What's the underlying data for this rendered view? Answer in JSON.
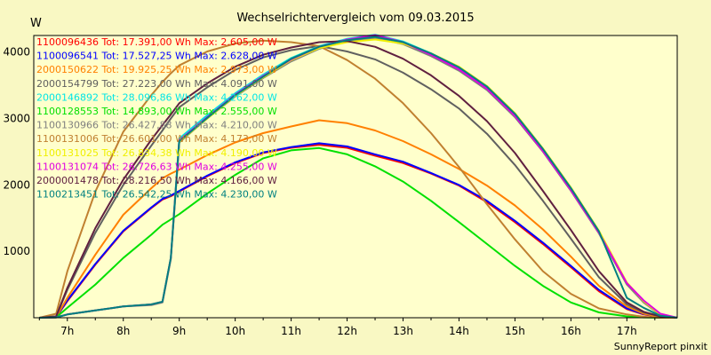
{
  "chart_data": {
    "type": "line",
    "title": "Wechselrichtervergleich vom 09.03.2015",
    "ylabel": "W",
    "xlabel": "",
    "footer": "SunnyReport pinxit",
    "xlim": [
      6.4,
      17.9
    ],
    "ylim": [
      0,
      4250
    ],
    "yticks": [
      1000,
      2000,
      3000,
      4000
    ],
    "xticks": [
      7,
      8,
      9,
      10,
      11,
      12,
      13,
      14,
      15,
      16,
      17
    ],
    "xtick_labels": [
      "7h",
      "8h",
      "9h",
      "10h",
      "11h",
      "12h",
      "13h",
      "14h",
      "15h",
      "16h",
      "17h"
    ],
    "x": [
      6.5,
      6.8,
      7,
      7.5,
      8,
      8.5,
      8.7,
      8.85,
      9,
      9.5,
      10,
      10.5,
      11,
      11.5,
      12,
      12.5,
      13,
      13.5,
      14,
      14.5,
      15,
      15.5,
      16,
      16.5,
      17,
      17.3,
      17.6,
      17.9
    ],
    "series": [
      {
        "name": "1100096436",
        "legend": "1100096436 Tot: 17.391,00 Wh Max: 2.605,00 W",
        "color": "#ff0000",
        "values": [
          0,
          10,
          250,
          800,
          1300,
          1650,
          1780,
          1830,
          1900,
          2130,
          2330,
          2480,
          2560,
          2605,
          2560,
          2440,
          2330,
          2170,
          1990,
          1740,
          1440,
          1110,
          760,
          400,
          130,
          50,
          10,
          0
        ]
      },
      {
        "name": "1100096541",
        "legend": "1100096541 Tot: 17.527,25 Wh Max: 2.628,00 W",
        "color": "#0000ff",
        "values": [
          0,
          10,
          260,
          810,
          1310,
          1660,
          1790,
          1840,
          1910,
          2140,
          2340,
          2490,
          2570,
          2628,
          2580,
          2460,
          2350,
          2180,
          2000,
          1760,
          1460,
          1130,
          780,
          420,
          140,
          55,
          10,
          0
        ]
      },
      {
        "name": "2000150622",
        "legend": "2000150622 Tot: 19.925,25 Wh Max: 2.973,00 W",
        "color": "#ff8000",
        "values": [
          0,
          10,
          300,
          950,
          1550,
          1950,
          2100,
          2170,
          2230,
          2450,
          2640,
          2780,
          2880,
          2973,
          2930,
          2820,
          2660,
          2460,
          2240,
          1990,
          1690,
          1330,
          920,
          480,
          170,
          60,
          10,
          0
        ]
      },
      {
        "name": "2000154799",
        "legend": "2000154799 Tot: 27.223,00 Wh Max: 4.091,00 W",
        "color": "#606060",
        "values": [
          0,
          20,
          420,
          1280,
          2000,
          2590,
          2820,
          3000,
          3170,
          3470,
          3730,
          3920,
          4030,
          4091,
          4010,
          3890,
          3690,
          3440,
          3150,
          2770,
          2300,
          1760,
          1190,
          610,
          200,
          80,
          20,
          0
        ]
      },
      {
        "name": "2000146892",
        "legend": "2000146892 Tot: 28.096,86 Wh Max: 4.262,00 W",
        "color": "#00e5e5",
        "values": [
          0,
          5,
          50,
          110,
          170,
          200,
          240,
          900,
          2700,
          3050,
          3380,
          3660,
          3910,
          4090,
          4200,
          4262,
          4160,
          3980,
          3760,
          3470,
          3060,
          2530,
          1940,
          1290,
          520,
          240,
          40,
          0
        ]
      },
      {
        "name": "1100128553",
        "legend": "1100128553 Tot: 14.893,00 Wh Max: 2.555,00 W",
        "color": "#00e000",
        "values": [
          0,
          5,
          150,
          500,
          900,
          1250,
          1400,
          1480,
          1560,
          1870,
          2150,
          2400,
          2520,
          2555,
          2460,
          2280,
          2050,
          1760,
          1440,
          1110,
          780,
          480,
          230,
          80,
          20,
          5,
          0,
          0
        ]
      },
      {
        "name": "1100130966",
        "legend": "1100130966 Tot: 26.427,88 Wh Max: 4.210,00 W",
        "color": "#808080",
        "values": [
          0,
          5,
          50,
          110,
          170,
          190,
          230,
          880,
          2640,
          3000,
          3330,
          3610,
          3860,
          4050,
          4170,
          4210,
          4120,
          3940,
          3720,
          3430,
          3020,
          2500,
          1910,
          1270,
          500,
          230,
          40,
          0
        ]
      },
      {
        "name": "1100131006",
        "legend": "1100131006 Tot: 26.601,00 Wh Max: 4.173,00 W",
        "color": "#c08030",
        "values": [
          0,
          60,
          700,
          1900,
          2800,
          3350,
          3550,
          3680,
          3800,
          4010,
          4130,
          4173,
          4150,
          4090,
          3880,
          3600,
          3230,
          2780,
          2270,
          1710,
          1180,
          700,
          360,
          140,
          50,
          15,
          0,
          0
        ]
      },
      {
        "name": "1100131025",
        "legend": "1100131025 Tot: 26.834,38 Wh Max: 4.190,00 W",
        "color": "#f0f000",
        "values": [
          0,
          5,
          50,
          110,
          170,
          200,
          240,
          900,
          2650,
          3000,
          3340,
          3620,
          3880,
          4060,
          4150,
          4190,
          4130,
          3980,
          3780,
          3490,
          3080,
          2550,
          1960,
          1310,
          530,
          250,
          45,
          0
        ]
      },
      {
        "name": "1100131074",
        "legend": "1100131074 Tot: 26.726,63 Wh Max: 4.255,00 W",
        "color": "#e000e0",
        "values": [
          0,
          5,
          50,
          110,
          170,
          200,
          240,
          900,
          2670,
          3020,
          3360,
          3640,
          3890,
          4080,
          4190,
          4255,
          4150,
          3960,
          3740,
          3450,
          3040,
          2510,
          1920,
          1280,
          520,
          260,
          60,
          0
        ]
      },
      {
        "name": "2000001478",
        "legend": "2000001478 Tot: 28.216,50 Wh Max: 4.166,00 W",
        "color": "#602040",
        "values": [
          0,
          20,
          450,
          1350,
          2080,
          2680,
          2900,
          3060,
          3230,
          3530,
          3780,
          3960,
          4070,
          4150,
          4166,
          4080,
          3900,
          3650,
          3340,
          2960,
          2480,
          1910,
          1320,
          700,
          230,
          90,
          20,
          0
        ]
      },
      {
        "name": "1100213451",
        "legend": "1100213451 Tot: 26.542,25 Wh Max: 4.230,00 W",
        "color": "#008080",
        "values": [
          0,
          5,
          50,
          110,
          170,
          200,
          240,
          900,
          2660,
          3010,
          3350,
          3630,
          3900,
          4080,
          4180,
          4230,
          4150,
          3980,
          3770,
          3480,
          3070,
          2540,
          1950,
          1300,
          300,
          150,
          30,
          0
        ]
      }
    ]
  }
}
